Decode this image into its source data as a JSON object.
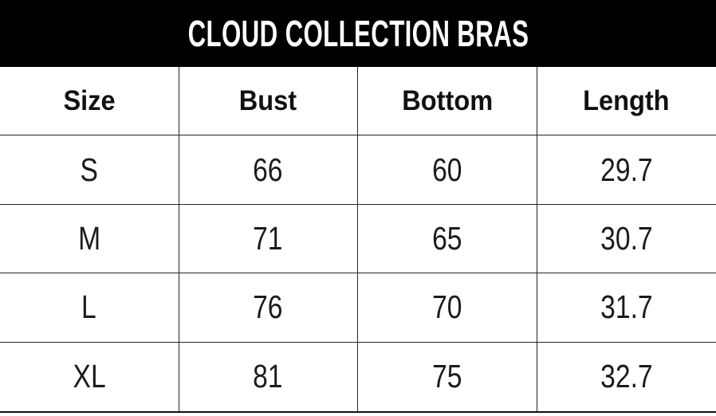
{
  "title": "CLOUD COLLECTION BRAS",
  "colors": {
    "title_bar_bg": "#000000",
    "title_text": "#ffffff",
    "table_text": "#1b1b1b",
    "grid_line": "#262626"
  },
  "chart_data": {
    "type": "table",
    "title": "CLOUD COLLECTION BRAS",
    "columns": [
      "Size",
      "Bust",
      "Bottom",
      "Length"
    ],
    "rows": [
      [
        "S",
        66,
        60,
        29.7
      ],
      [
        "M",
        71,
        65,
        30.7
      ],
      [
        "L",
        76,
        70,
        31.7
      ],
      [
        "XL",
        81,
        75,
        32.7
      ]
    ]
  }
}
